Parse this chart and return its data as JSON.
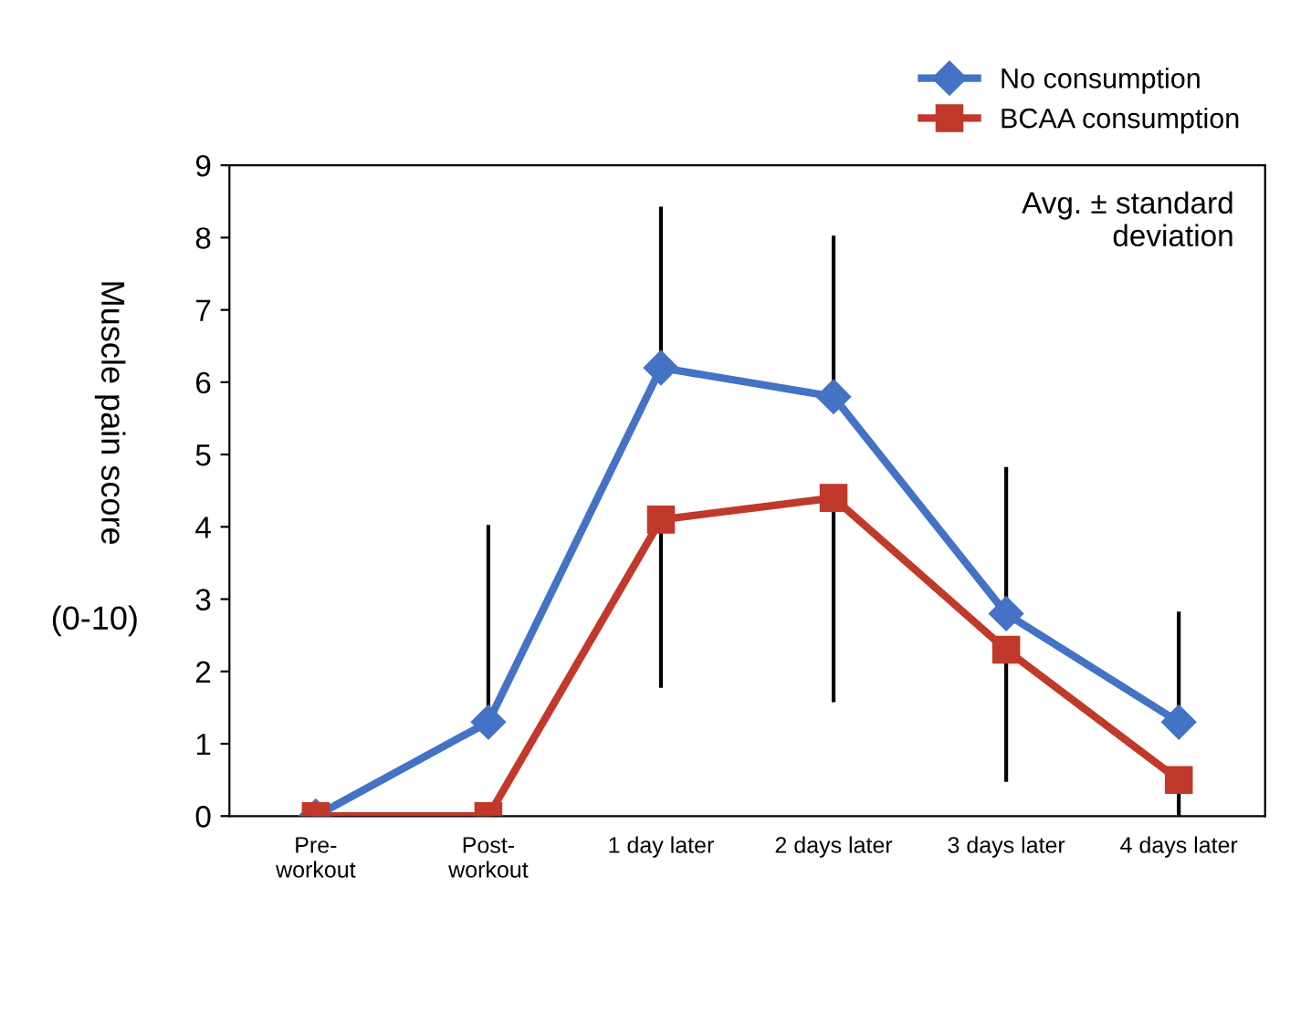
{
  "chart_data": {
    "type": "line",
    "ylabel": "Muscle pain score",
    "categories": [
      "Pre-\nworkout",
      "Post-\nworkout",
      "1 day later",
      "2 days later",
      "3 days later",
      "4 days later"
    ],
    "series": [
      {
        "name": "No consumption",
        "color": "#4472c4",
        "marker": "diamond",
        "values": [
          0,
          1.3,
          6.2,
          5.8,
          2.8,
          1.3
        ],
        "errors": [
          null,
          [
            1.3,
            4.0
          ],
          [
            6.2,
            8.4
          ],
          [
            5.8,
            8.0
          ],
          [
            2.8,
            4.8
          ],
          [
            1.3,
            2.8
          ]
        ]
      },
      {
        "name": "BCAA consumption",
        "color": "#c0392b",
        "marker": "square",
        "values": [
          0,
          0,
          4.1,
          4.4,
          2.3,
          0.5
        ],
        "errors": [
          null,
          null,
          [
            1.8,
            4.1
          ],
          [
            1.6,
            4.4
          ],
          [
            0.5,
            2.3
          ],
          [
            0.0,
            0.5
          ]
        ]
      }
    ],
    "ylim": [
      0,
      9
    ],
    "yticks": [
      0,
      1,
      2,
      3,
      4,
      5,
      6,
      7,
      8,
      9
    ],
    "grid": false,
    "legend": "top right",
    "line_style": "solid",
    "annotations": [
      "Avg. ± standard\ndeviation",
      "(0-10)"
    ]
  }
}
